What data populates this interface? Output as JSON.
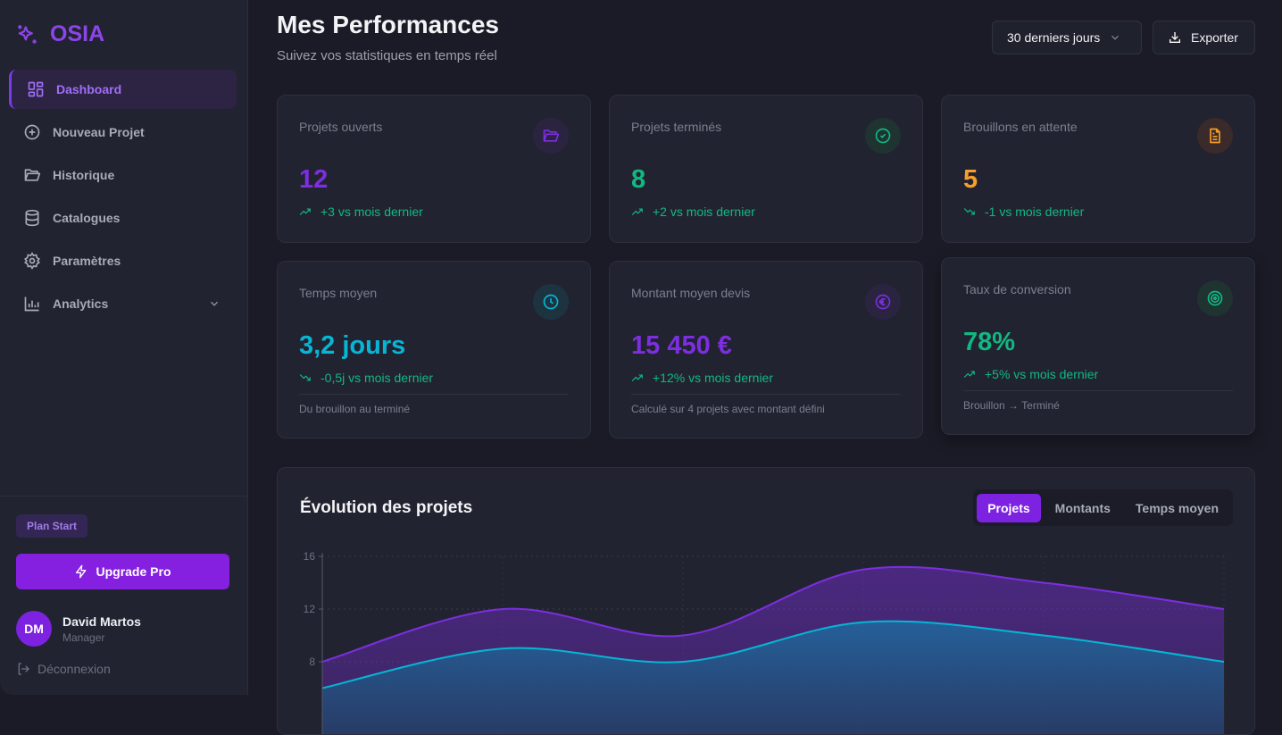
{
  "sidebar": {
    "brand": "OSIA",
    "items": [
      {
        "label": "Dashboard"
      },
      {
        "label": "Nouveau Projet"
      },
      {
        "label": "Historique"
      },
      {
        "label": "Catalogues"
      },
      {
        "label": "Paramètres"
      },
      {
        "label": "Analytics"
      }
    ],
    "plan": "Plan Start",
    "upgrade": "Upgrade Pro",
    "user": {
      "initials": "DM",
      "name": "David Martos",
      "role": "Manager"
    },
    "logout": "Déconnexion"
  },
  "header": {
    "title": "Mes Performances",
    "subtitle": "Suivez vos statistiques en temps réel",
    "period": "30 derniers jours",
    "export": "Exporter"
  },
  "cards": [
    {
      "label": "Projets ouverts",
      "value": "12",
      "trend": "+3 vs mois dernier",
      "color": "#7c2ee0"
    },
    {
      "label": "Projets terminés",
      "value": "8",
      "trend": "+2 vs mois dernier",
      "color": "#10b981"
    },
    {
      "label": "Brouillons en attente",
      "value": "5",
      "trend": "-1 vs mois dernier",
      "color": "#f59e2b"
    },
    {
      "label": "Temps moyen",
      "value": "3,2 jours",
      "trend": "-0,5j vs mois dernier",
      "note": "Du brouillon au terminé",
      "color": "#06b6d4"
    },
    {
      "label": "Montant moyen devis",
      "value": "15 450 €",
      "trend": "+12% vs mois dernier",
      "note": "Calculé sur 4 projets avec montant défini",
      "color": "#7c2ee0"
    },
    {
      "label": "Taux de conversion",
      "value": "78%",
      "trend": "+5% vs mois dernier",
      "note": "Brouillon → Terminé",
      "color": "#10b981"
    }
  ],
  "chart": {
    "title": "Évolution des projets",
    "tabs": [
      "Projets",
      "Montants",
      "Temps moyen"
    ]
  },
  "chart_data": {
    "type": "area",
    "title": "Évolution des projets",
    "y_ticks": [
      16,
      12,
      8
    ],
    "ylim": [
      0,
      16
    ],
    "grid": true,
    "series": [
      {
        "color": "#7c2ee0",
        "values": [
          8,
          12,
          10,
          15,
          14,
          12
        ]
      },
      {
        "color": "#06b6d4",
        "values": [
          6,
          9,
          8,
          11,
          10,
          8
        ]
      }
    ]
  }
}
